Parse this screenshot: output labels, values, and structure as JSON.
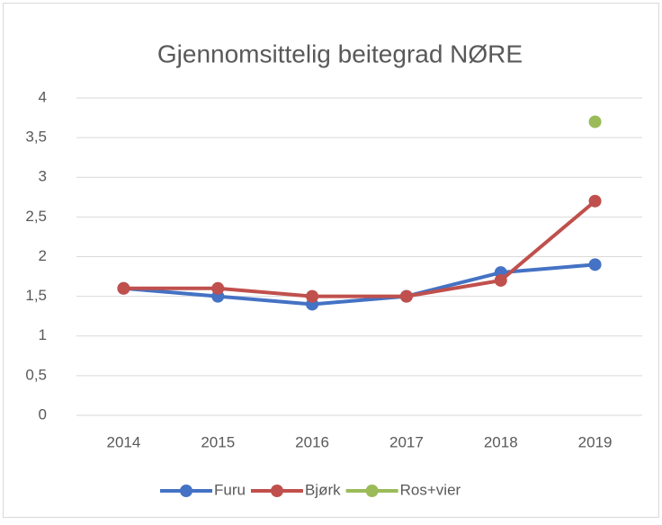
{
  "chart_data": {
    "type": "line",
    "title": "Gjennomsittelig beitegrad NØRE",
    "categories": [
      "2014",
      "2015",
      "2016",
      "2017",
      "2018",
      "2019"
    ],
    "series": [
      {
        "name": "Furu",
        "color": "#4472c4",
        "values": [
          1.6,
          1.5,
          1.4,
          1.5,
          1.8,
          1.9
        ]
      },
      {
        "name": "Bjørk",
        "color": "#c0504d",
        "values": [
          1.6,
          1.6,
          1.5,
          1.5,
          1.7,
          2.7
        ]
      },
      {
        "name": "Ros+vier",
        "color": "#9bbb59",
        "values": [
          null,
          null,
          null,
          null,
          null,
          3.7
        ]
      }
    ],
    "ylim": [
      0,
      4
    ],
    "yticks": [
      0,
      {
        "value": 0.5,
        "label": "0,5"
      },
      1,
      {
        "value": 1.5,
        "label": "1,5"
      },
      2,
      {
        "value": 2.5,
        "label": "2,5"
      },
      3,
      {
        "value": 3.5,
        "label": "3,5"
      },
      4
    ],
    "grid": true,
    "legend": "bottom"
  }
}
